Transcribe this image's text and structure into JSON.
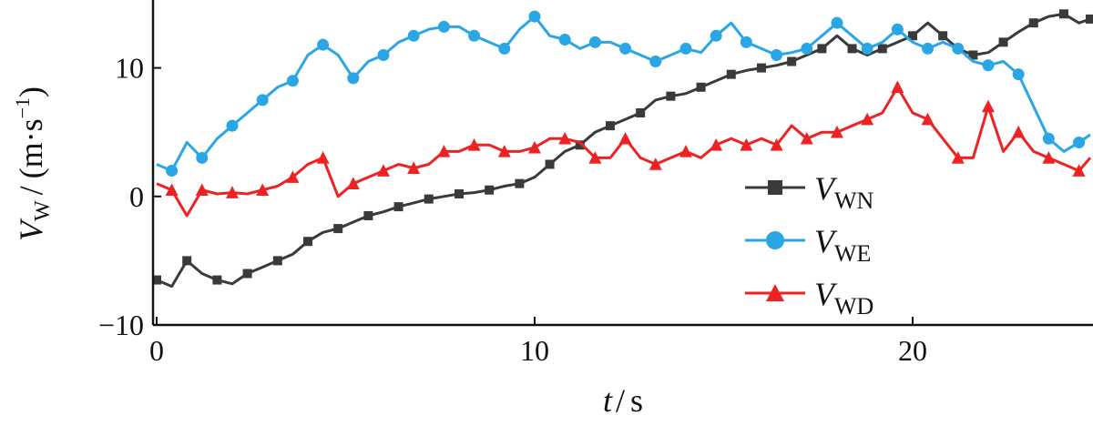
{
  "chart_data": {
    "type": "line",
    "xlabel": {
      "var": "t",
      "unit": "s"
    },
    "ylabel": {
      "var": "V",
      "sub": "W",
      "unit_pre": "(m·s",
      "unit_sup": "−1",
      "unit_post": ")"
    },
    "xlim": [
      0,
      24.7
    ],
    "ylim": [
      -10,
      15
    ],
    "x_ticks": [
      0,
      10,
      20
    ],
    "x_tick_labels": [
      "0",
      "10",
      "20"
    ],
    "y_ticks": [
      -10,
      0,
      10
    ],
    "y_tick_labels": [
      "−10",
      "0",
      "10"
    ],
    "grid": false,
    "legend_position": "bottom-right",
    "series": [
      {
        "name": "V",
        "name_sub": "WN",
        "color": "#3a3a3a",
        "marker": "square",
        "x": [
          0,
          0.4,
          0.8,
          1.2,
          1.6,
          2,
          2.4,
          2.8,
          3.2,
          3.6,
          4,
          4.4,
          4.8,
          5.2,
          5.6,
          6,
          6.4,
          6.8,
          7.2,
          7.6,
          8,
          8.4,
          8.8,
          9.2,
          9.6,
          10,
          10.4,
          10.8,
          11.2,
          11.6,
          12,
          12.4,
          12.8,
          13.2,
          13.6,
          14,
          14.4,
          14.8,
          15.2,
          15.6,
          16,
          16.4,
          16.8,
          17.2,
          17.6,
          18,
          18.4,
          18.8,
          19.2,
          19.6,
          20,
          20.4,
          20.8,
          21.2,
          21.6,
          22,
          22.4,
          22.8,
          23.2,
          23.6,
          24,
          24.4,
          24.7
        ],
        "y": [
          -6.5,
          -7,
          -5,
          -6,
          -6.5,
          -6.8,
          -6,
          -5.5,
          -5,
          -4.5,
          -3.5,
          -2.8,
          -2.5,
          -2,
          -1.5,
          -1.2,
          -0.8,
          -0.5,
          -0.2,
          0,
          0.2,
          0.3,
          0.5,
          0.8,
          1,
          1.5,
          2.5,
          3.5,
          4,
          5,
          5.5,
          6,
          6.5,
          7.5,
          7.8,
          8,
          8.5,
          9,
          9.5,
          9.8,
          10,
          10.2,
          10.5,
          11,
          11.5,
          12.5,
          11.5,
          11,
          11.5,
          12,
          12.5,
          13.5,
          12.5,
          11.5,
          11,
          11.2,
          12,
          12.8,
          13.5,
          14,
          14.2,
          13.5,
          13.8
        ]
      },
      {
        "name": "V",
        "name_sub": "WE",
        "color": "#2ba6e4",
        "marker": "circle",
        "x": [
          0,
          0.4,
          0.8,
          1.2,
          1.6,
          2,
          2.4,
          2.8,
          3.2,
          3.6,
          4,
          4.4,
          4.8,
          5.2,
          5.6,
          6,
          6.4,
          6.8,
          7.2,
          7.6,
          8,
          8.4,
          8.8,
          9.2,
          9.6,
          10,
          10.4,
          10.8,
          11.2,
          11.6,
          12,
          12.4,
          12.8,
          13.2,
          13.6,
          14,
          14.4,
          14.8,
          15.2,
          15.6,
          16,
          16.4,
          16.8,
          17.2,
          17.6,
          18,
          18.4,
          18.8,
          19.2,
          19.6,
          20,
          20.4,
          20.8,
          21.2,
          21.6,
          22,
          22.4,
          22.8,
          23.2,
          23.6,
          24,
          24.4,
          24.7
        ],
        "y": [
          2.5,
          2,
          4.2,
          3,
          4.5,
          5.5,
          6.5,
          7.5,
          8.5,
          9,
          11,
          11.8,
          11,
          9.2,
          10.5,
          11,
          12,
          12.5,
          13,
          13.2,
          13.2,
          12.5,
          12,
          11.5,
          13,
          14,
          12.5,
          12.2,
          11.5,
          12,
          12,
          11.5,
          11,
          10.5,
          11,
          11.5,
          11.2,
          12.5,
          13.5,
          12,
          11.5,
          11,
          11.2,
          11.5,
          12.5,
          13.5,
          12.5,
          11.5,
          12,
          13,
          12,
          11.5,
          12,
          11.5,
          10.5,
          10.2,
          10.5,
          9.5,
          7,
          4.5,
          3.5,
          4.2,
          4.8
        ]
      },
      {
        "name": "V",
        "name_sub": "WD",
        "color": "#ee2222",
        "marker": "triangle",
        "x": [
          0,
          0.4,
          0.8,
          1.2,
          1.6,
          2,
          2.4,
          2.8,
          3.2,
          3.6,
          4,
          4.4,
          4.8,
          5.2,
          5.6,
          6,
          6.4,
          6.8,
          7.2,
          7.6,
          8,
          8.4,
          8.8,
          9.2,
          9.6,
          10,
          10.4,
          10.8,
          11.2,
          11.6,
          12,
          12.4,
          12.8,
          13.2,
          13.6,
          14,
          14.4,
          14.8,
          15.2,
          15.6,
          16,
          16.4,
          16.8,
          17.2,
          17.6,
          18,
          18.4,
          18.8,
          19.2,
          19.6,
          20,
          20.4,
          20.8,
          21.2,
          21.6,
          22,
          22.4,
          22.8,
          23.2,
          23.6,
          24,
          24.4,
          24.7
        ],
        "y": [
          1,
          0.5,
          -1.5,
          0.5,
          0.2,
          0.3,
          0.2,
          0.5,
          0.8,
          1.5,
          2.5,
          3,
          0,
          1,
          1.5,
          2,
          2.5,
          2.2,
          2.5,
          3.5,
          3.5,
          4,
          4,
          3.5,
          3.5,
          3.8,
          4.5,
          4.5,
          4.2,
          3,
          3,
          4.5,
          3,
          2.5,
          3,
          3.5,
          3,
          4,
          4.5,
          4,
          4.5,
          4,
          5.5,
          4.5,
          5,
          5,
          5.5,
          6,
          6.5,
          8.5,
          6.5,
          6,
          4.5,
          3,
          3,
          7,
          3.5,
          5,
          3.5,
          3,
          2.5,
          2,
          3
        ]
      }
    ]
  }
}
